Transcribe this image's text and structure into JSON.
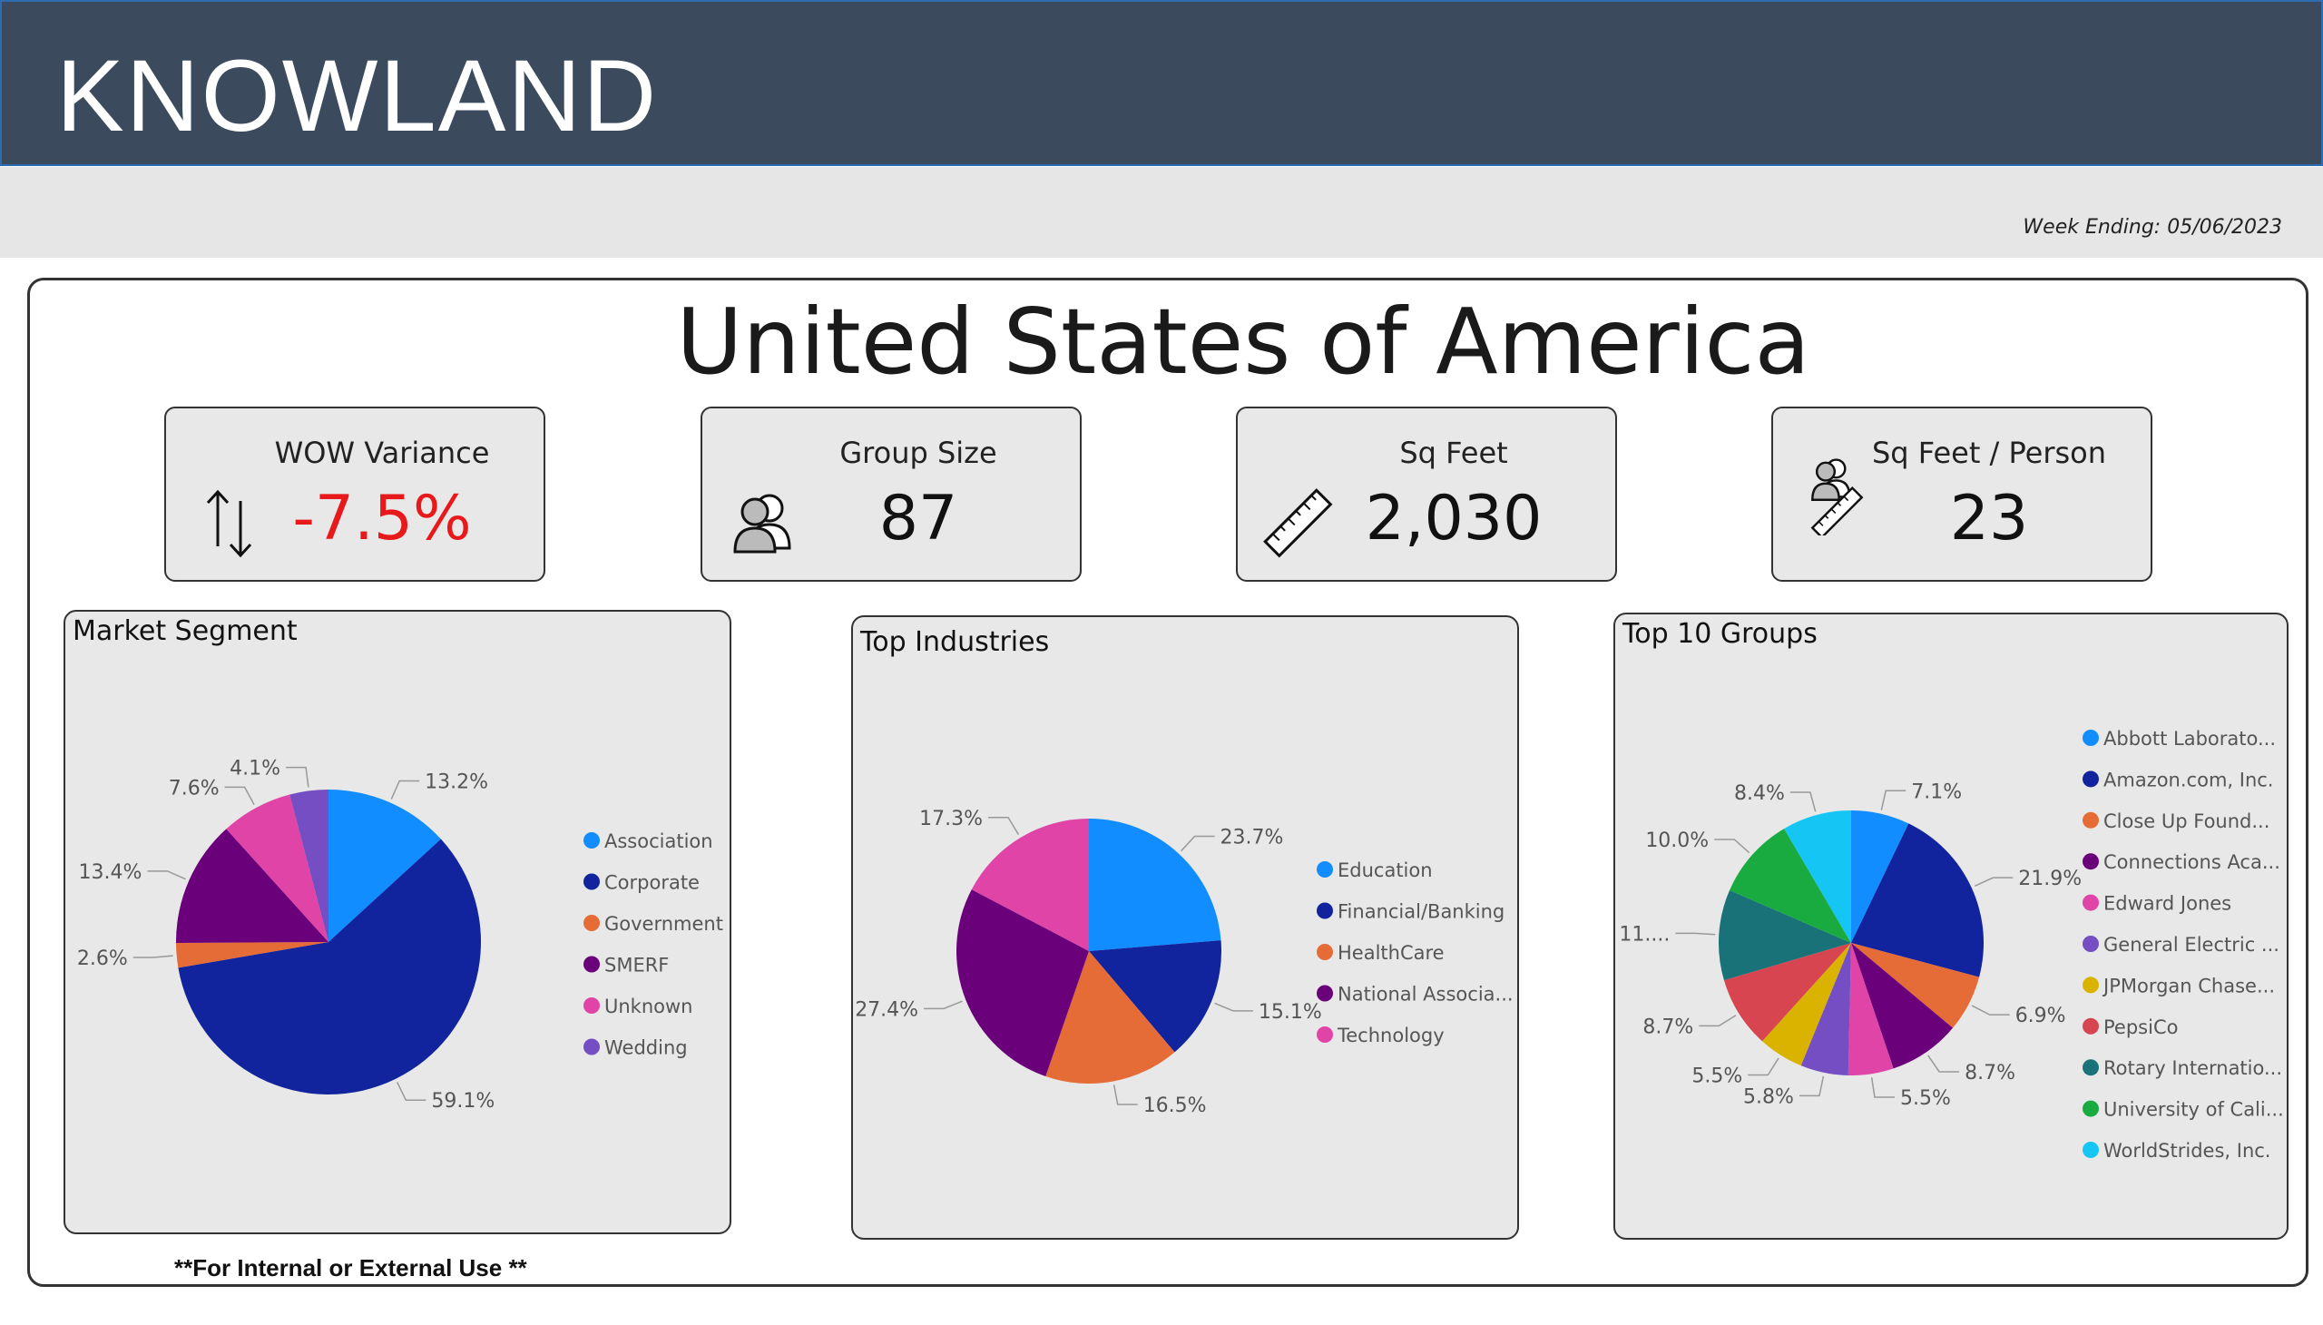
{
  "header": {
    "brand": "KNOWLAND"
  },
  "subbar": {
    "week_ending": "Week Ending: 05/06/2023"
  },
  "main": {
    "title": "United States of America"
  },
  "kpis": [
    {
      "title": "WOW Variance",
      "value": "-7.5%",
      "icon": "up-down-arrows-icon",
      "negative": true
    },
    {
      "title": "Group Size",
      "value": "87",
      "icon": "people-icon",
      "negative": false
    },
    {
      "title": "Sq Feet",
      "value": "2,030",
      "icon": "ruler-icon",
      "negative": false
    },
    {
      "title": "Sq Feet / Person",
      "value": "23",
      "icon": "people-ruler-icon",
      "negative": false
    }
  ],
  "footer": {
    "note": "**For Internal or External Use **"
  },
  "chart_data": [
    {
      "type": "pie",
      "title": "Market Segment",
      "labels": [
        "Association",
        "Corporate",
        "Government",
        "SMERF",
        "Unknown",
        "Wedding"
      ],
      "values": [
        13.2,
        59.1,
        2.6,
        13.4,
        7.6,
        4.1
      ],
      "data_labels": [
        "13.2%",
        "59.1%",
        "2.6%",
        "13.4%",
        "7.6%",
        "4.1%"
      ],
      "colors": [
        "#118dff",
        "#12239e",
        "#e66c37",
        "#6b007b",
        "#e044a7",
        "#744ec2"
      ],
      "legend": "right"
    },
    {
      "type": "pie",
      "title": "Top Industries",
      "labels": [
        "Education",
        "Financial/Banking",
        "HealthCare",
        "National Associa...",
        "Technology"
      ],
      "values": [
        23.7,
        15.1,
        16.5,
        27.4,
        17.3
      ],
      "data_labels": [
        "23.7%",
        "15.1%",
        "16.5%",
        "27.4%",
        "17.3%"
      ],
      "colors": [
        "#118dff",
        "#12239e",
        "#e66c37",
        "#6b007b",
        "#e044a7"
      ],
      "legend": "right"
    },
    {
      "type": "pie",
      "title": "Top 10 Groups",
      "labels": [
        "Abbott Laborato...",
        "Amazon.com, Inc.",
        "Close Up Found...",
        "Connections Aca...",
        "Edward Jones",
        "General Electric ...",
        "JPMorgan Chase...",
        "PepsiCo",
        "Rotary Internatio...",
        "University of Cali...",
        "WorldStrides, Inc."
      ],
      "values": [
        7.1,
        21.9,
        6.9,
        8.7,
        5.5,
        5.8,
        5.5,
        8.7,
        11.0,
        10.0,
        8.4
      ],
      "data_labels": [
        "7.1%",
        "21.9%",
        "6.9%",
        "8.7%",
        "5.5%",
        "5.8%",
        "5.5%",
        "8.7%",
        "11....",
        "10.0%",
        "8.4%"
      ],
      "colors": [
        "#118dff",
        "#12239e",
        "#e66c37",
        "#6b007b",
        "#e044a7",
        "#744ec2",
        "#d9b300",
        "#d64550",
        "#197278",
        "#1aab40",
        "#15c6f4"
      ],
      "legend": "right"
    }
  ]
}
